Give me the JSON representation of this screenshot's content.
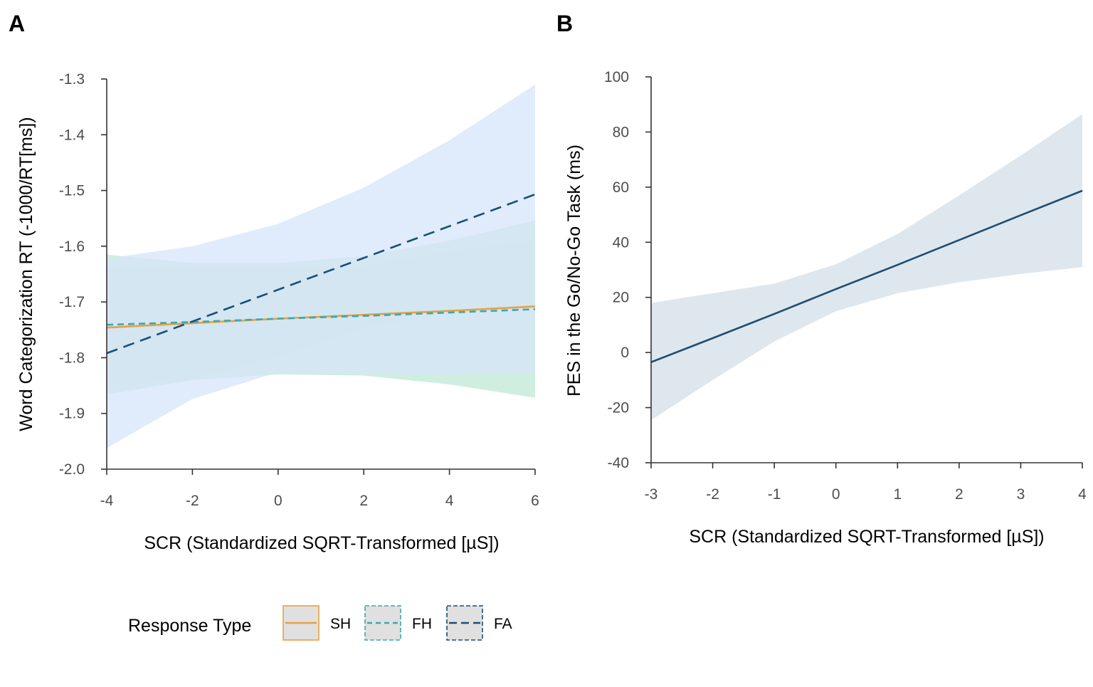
{
  "chart_data": [
    {
      "panel": "A",
      "type": "line",
      "xlabel": "SCR (Standardized SQRT-Transformed [µS])",
      "ylabel": "Word Categorization RT (-1000/RT[ms])",
      "xlim": [
        -4,
        6
      ],
      "ylim": [
        -2.0,
        -1.3
      ],
      "xticks": [
        -4,
        -2,
        0,
        2,
        4,
        6
      ],
      "yticks": [
        -2.0,
        -1.9,
        -1.8,
        -1.7,
        -1.6,
        -1.5,
        -1.4,
        -1.3
      ],
      "xtick_labels": [
        "-4",
        "-2",
        "0",
        "2",
        "4",
        "6"
      ],
      "ytick_labels": [
        "-2.0",
        "-1.9",
        "-1.8",
        "-1.7",
        "-1.6",
        "-1.5",
        "-1.4",
        "-1.3"
      ],
      "legend": {
        "title": "Response Type",
        "placement": "bottom"
      },
      "series": [
        {
          "name": "SH",
          "color": "#E8A040",
          "band_color": "#f0e8c4",
          "dash": "solid",
          "x": [
            -4,
            -2,
            0,
            2,
            4,
            6
          ],
          "y": [
            -1.746,
            -1.738,
            -1.73,
            -1.723,
            -1.716,
            -1.708
          ],
          "lower": [
            -1.85,
            -1.84,
            -1.797,
            -1.745,
            -1.72,
            -1.71
          ],
          "upper": [
            -1.64,
            -1.64,
            -1.64,
            -1.635,
            -1.61,
            -1.59
          ]
        },
        {
          "name": "FH",
          "color": "#3AA7B0",
          "band_color": "#bfe8d6",
          "dash": "dashed",
          "x": [
            -4,
            -2,
            0,
            2,
            4,
            6
          ],
          "y": [
            -1.741,
            -1.736,
            -1.73,
            -1.725,
            -1.719,
            -1.713
          ],
          "lower": [
            -1.866,
            -1.84,
            -1.83,
            -1.832,
            -1.848,
            -1.872
          ],
          "upper": [
            -1.615,
            -1.63,
            -1.63,
            -1.618,
            -1.59,
            -1.554
          ]
        },
        {
          "name": "FA",
          "color": "#1A4E75",
          "band_color": "#d6e4fa",
          "dash": "longdash",
          "x": [
            -4,
            -2,
            0,
            2,
            4,
            6
          ],
          "y": [
            -1.792,
            -1.735,
            -1.678,
            -1.621,
            -1.564,
            -1.507
          ],
          "lower": [
            -1.962,
            -1.874,
            -1.826,
            -1.83,
            -1.83,
            -1.828
          ],
          "upper": [
            -1.622,
            -1.6,
            -1.56,
            -1.495,
            -1.41,
            -1.31
          ]
        }
      ]
    },
    {
      "panel": "B",
      "type": "line",
      "xlabel": "SCR (Standardized SQRT-Transformed [µS])",
      "ylabel": "PES in the Go/No-Go Task (ms)",
      "xlim": [
        -3,
        4
      ],
      "ylim": [
        -40,
        100
      ],
      "xticks": [
        -3,
        -2,
        -1,
        0,
        1,
        2,
        3,
        4
      ],
      "yticks": [
        -40,
        -20,
        0,
        20,
        40,
        60,
        80,
        100
      ],
      "xtick_labels": [
        "-3",
        "-2",
        "-1",
        "0",
        "1",
        "2",
        "3",
        "4"
      ],
      "ytick_labels": [
        "-40",
        "-20",
        "0",
        "20",
        "40",
        "60",
        "80",
        "100"
      ],
      "series": [
        {
          "color": "#1A4E75",
          "band_color": "#d3dfe7",
          "dash": "solid",
          "x": [
            -3,
            -2,
            -1,
            0,
            1,
            2,
            3,
            4
          ],
          "y": [
            -3.5,
            5.2,
            14.0,
            23.0,
            31.8,
            40.8,
            49.8,
            58.7
          ],
          "lower": [
            -24.5,
            -10,
            4,
            15,
            21.5,
            25.5,
            28.5,
            31
          ],
          "upper": [
            18,
            21.5,
            25,
            32,
            43,
            57,
            71.5,
            86.5
          ]
        }
      ]
    }
  ]
}
